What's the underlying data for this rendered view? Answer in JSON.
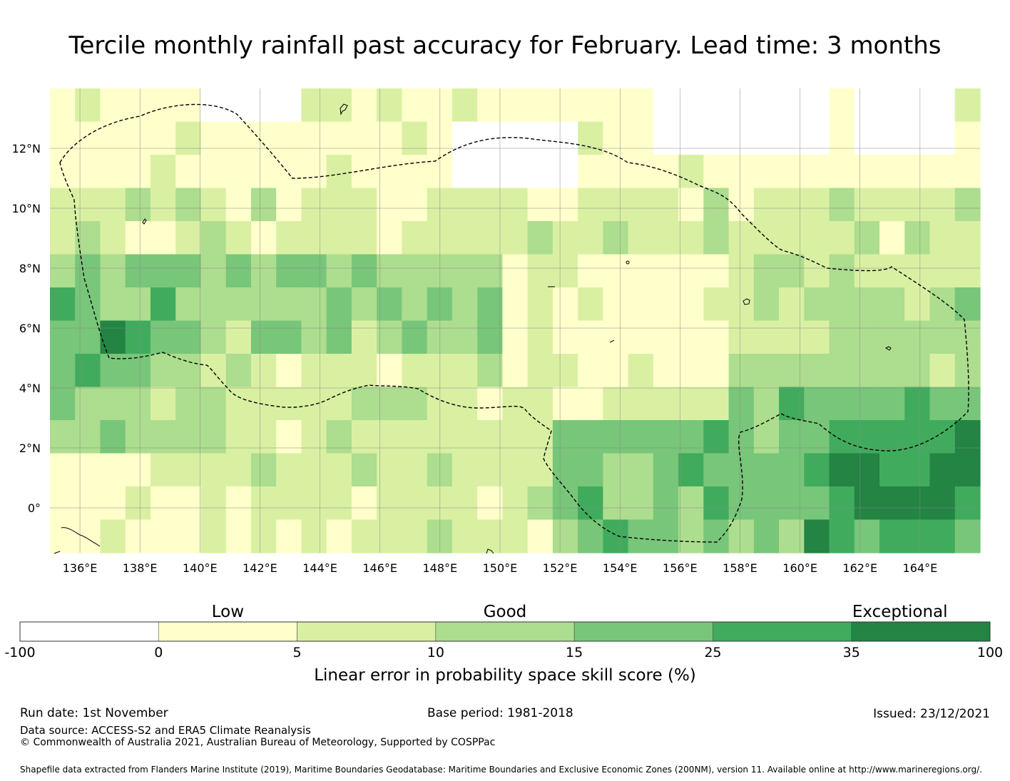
{
  "title": "Tercile monthly rainfall past accuracy for February. Lead time: 3 months",
  "map": {
    "lon_range": [
      135.0,
      166.0
    ],
    "lat_range": [
      -1.5,
      14.0
    ],
    "x_ticks": [
      "136°E",
      "138°E",
      "140°E",
      "142°E",
      "144°E",
      "146°E",
      "148°E",
      "150°E",
      "152°E",
      "154°E",
      "156°E",
      "158°E",
      "160°E",
      "162°E",
      "164°E"
    ],
    "y_ticks": [
      "12°N",
      "10°N",
      "8°N",
      "6°N",
      "4°N",
      "2°N",
      "0°"
    ]
  },
  "colorbar": {
    "categories": [
      "Low",
      "Good",
      "Exceptional"
    ],
    "boundaries": [
      "-100",
      "0",
      "5",
      "10",
      "15",
      "25",
      "35",
      "100"
    ],
    "colors": [
      "#ffffff",
      "#ffffcc",
      "#d9f0a3",
      "#addd8e",
      "#78c679",
      "#41ab5d",
      "#238443"
    ],
    "label": "Linear error in probability space skill score (%)"
  },
  "footer": {
    "run_date": "Run date: 1st November",
    "base_period": "Base period: 1981-2018",
    "issued": "Issued: 23/12/2021",
    "data_source": "Data source: ACCESS-S2 and ERA5 Climate Reanalysis",
    "copyright": "© Commonwealth of Australia 2021, Australian Bureau of Meteorology, Supported by COSPPac",
    "shapefile": "Shapefile data extracted from Flanders Marine Institute (2019), Maritime Boundaries Geodatabase: Maritime Boundaries and Exclusive Economic Zones (200NM), version 11. Available online at http://www.marineregions.org/."
  }
}
